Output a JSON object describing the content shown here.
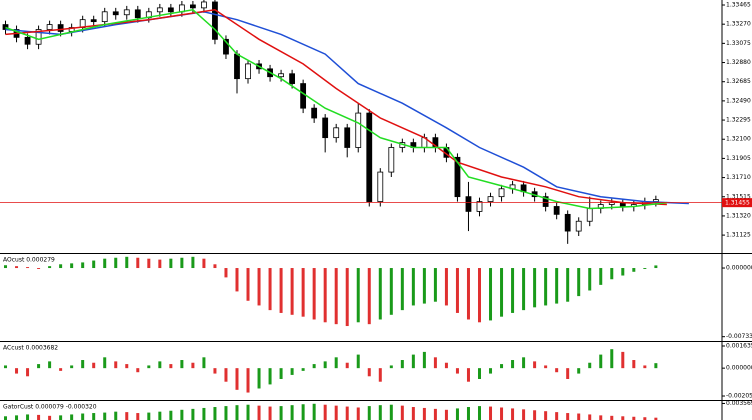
{
  "chart_data": [
    {
      "type": "candlestick",
      "open": [
        1.33266,
        1.33216,
        1.33136,
        1.33066,
        1.33216,
        1.33266,
        1.33196,
        1.33236,
        1.33316,
        1.33296,
        1.33396,
        1.33366,
        1.33416,
        1.33336,
        1.33396,
        1.33436,
        1.33396,
        1.33466,
        1.33436,
        1.33496,
        1.33116,
        1.32966,
        1.32716,
        1.32866,
        1.32816,
        1.32736,
        1.32766,
        1.32666,
        1.32416,
        1.32316,
        1.32116,
        1.32216,
        1.32016,
        1.32366,
        1.31466,
        1.31766,
        1.32016,
        1.32066,
        1.32016,
        1.32116,
        1.32016,
        1.31916,
        1.31516,
        1.31366,
        1.31466,
        1.31516,
        1.31596,
        1.31636,
        1.31566,
        1.31516,
        1.31416,
        1.31336,
        1.31166,
        1.31266,
        1.31396,
        1.31436,
        1.31456,
        1.31416,
        1.31436,
        1.31466
      ],
      "high": [
        1.33306,
        1.33256,
        1.33176,
        1.33256,
        1.33306,
        1.33306,
        1.33276,
        1.33356,
        1.33356,
        1.33436,
        1.33436,
        1.33456,
        1.33456,
        1.33436,
        1.33476,
        1.33476,
        1.33506,
        1.33506,
        1.33516,
        1.33516,
        1.33156,
        1.33006,
        1.32906,
        1.32906,
        1.32856,
        1.32806,
        1.32806,
        1.32706,
        1.32456,
        1.32356,
        1.32256,
        1.32256,
        1.32466,
        1.32406,
        1.31806,
        1.32056,
        1.32106,
        1.32106,
        1.32156,
        1.32156,
        1.32056,
        1.31956,
        1.31666,
        1.31506,
        1.31556,
        1.31636,
        1.31676,
        1.31676,
        1.31606,
        1.31556,
        1.31456,
        1.31376,
        1.31306,
        1.31516,
        1.31476,
        1.31496,
        1.31496,
        1.31476,
        1.31506,
        1.31526
      ],
      "low": [
        1.33166,
        1.33086,
        1.33016,
        1.33016,
        1.33166,
        1.33146,
        1.33146,
        1.33186,
        1.33246,
        1.33246,
        1.33316,
        1.33316,
        1.33286,
        1.33286,
        1.33346,
        1.33346,
        1.33346,
        1.33386,
        1.33386,
        1.33066,
        1.32916,
        1.32566,
        1.32666,
        1.32766,
        1.32686,
        1.32686,
        1.32616,
        1.32366,
        1.32266,
        1.31966,
        1.32066,
        1.31916,
        1.31966,
        1.31416,
        1.31416,
        1.31716,
        1.31966,
        1.31966,
        1.31966,
        1.31966,
        1.31866,
        1.31466,
        1.31166,
        1.31316,
        1.31416,
        1.31466,
        1.31546,
        1.31516,
        1.31466,
        1.31366,
        1.31286,
        1.31036,
        1.31116,
        1.31216,
        1.31346,
        1.31386,
        1.31366,
        1.31366,
        1.31386,
        1.31416
      ],
      "close": [
        1.33216,
        1.33136,
        1.33066,
        1.33216,
        1.33266,
        1.33196,
        1.33236,
        1.33316,
        1.33296,
        1.33396,
        1.33366,
        1.33416,
        1.33336,
        1.33396,
        1.33436,
        1.33396,
        1.33466,
        1.33436,
        1.33496,
        1.33116,
        1.32966,
        1.32716,
        1.32866,
        1.32816,
        1.32736,
        1.32766,
        1.32666,
        1.32416,
        1.32316,
        1.32116,
        1.32216,
        1.32016,
        1.32366,
        1.31466,
        1.31766,
        1.32016,
        1.32066,
        1.32016,
        1.32116,
        1.32016,
        1.31916,
        1.31516,
        1.31366,
        1.31466,
        1.31516,
        1.31596,
        1.31636,
        1.31566,
        1.31516,
        1.31416,
        1.31336,
        1.31166,
        1.31266,
        1.31396,
        1.31436,
        1.31456,
        1.31416,
        1.31436,
        1.31466,
        1.31486
      ],
      "up_color": "#ffffff",
      "down_color": "#000000",
      "series": [
        {
          "color": "#1f4fd6",
          "x": [
            0,
            5,
            10,
            18,
            21,
            25,
            29,
            32,
            36,
            40,
            43,
            47,
            50,
            54,
            58,
            62
          ],
          "values": [
            1.33216,
            1.33166,
            1.33266,
            1.33396,
            1.33316,
            1.33166,
            1.32966,
            1.32666,
            1.32466,
            1.32216,
            1.32016,
            1.31816,
            1.31616,
            1.31516,
            1.31466,
            1.31446
          ]
        },
        {
          "color": "#e01010",
          "x": [
            0,
            5,
            13,
            19,
            23,
            27,
            30,
            34,
            38,
            41,
            45,
            49,
            52,
            56,
            60
          ],
          "values": [
            1.33166,
            1.33216,
            1.33316,
            1.33416,
            1.33116,
            1.32866,
            1.32616,
            1.32316,
            1.32116,
            1.31866,
            1.31716,
            1.31616,
            1.31516,
            1.31456,
            1.31436
          ]
        },
        {
          "color": "#22dd22",
          "x": [
            0,
            3,
            9,
            17,
            19,
            21,
            25,
            29,
            32,
            34,
            37,
            40,
            42,
            47,
            50,
            53,
            57,
            60
          ],
          "values": [
            1.33236,
            1.33116,
            1.33266,
            1.33416,
            1.33216,
            1.32966,
            1.32716,
            1.32416,
            1.32266,
            1.32116,
            1.32016,
            1.32016,
            1.31716,
            1.31566,
            1.31466,
            1.31396,
            1.31416,
            1.31456
          ]
        }
      ],
      "current_price": 1.31455,
      "current_price_color": "#e01010",
      "xlim": [
        -0.5,
        65
      ],
      "ylim": [
        1.30943,
        1.33516
      ],
      "yticks": [
        1.33465,
        {
          "value": 1.3327,
          "label": "1.33270"
        },
        1.33075,
        {
          "value": 1.3288,
          "label": "1.32880"
        },
        1.32685,
        {
          "value": 1.3249,
          "label": "1.32490"
        },
        1.32295,
        {
          "value": 1.321,
          "label": "1.32100"
        },
        1.31905,
        {
          "value": 1.3171,
          "label": "1.31710"
        },
        1.31515,
        {
          "value": 1.3132,
          "label": "1.31320"
        },
        1.31125
      ]
    },
    {
      "type": "bar",
      "title": "AOcust 0.000279",
      "up_color": "#1a9a1a",
      "down_color": "#e03030",
      "values": [
        0.0003,
        0.0002,
        0.0001,
        -0.0001,
        0.0002,
        0.0004,
        0.0005,
        0.0006,
        0.0008,
        0.001,
        0.0011,
        0.0012,
        0.0011,
        0.001,
        0.0009,
        0.001,
        0.0011,
        0.0012,
        0.001,
        0.0004,
        -0.001,
        -0.0025,
        -0.0035,
        -0.004,
        -0.0045,
        -0.0048,
        -0.005,
        -0.0052,
        -0.0055,
        -0.0058,
        -0.006,
        -0.0062,
        -0.0058,
        -0.006,
        -0.0055,
        -0.005,
        -0.0045,
        -0.004,
        -0.0038,
        -0.0036,
        -0.004,
        -0.0048,
        -0.0055,
        -0.0058,
        -0.0056,
        -0.0052,
        -0.0048,
        -0.0045,
        -0.0042,
        -0.004,
        -0.0038,
        -0.0036,
        -0.003,
        -0.0024,
        -0.0018,
        -0.0012,
        -0.0008,
        -0.0004,
        -0.0001,
        0.000279
      ],
      "xlim": [
        -0.5,
        65
      ],
      "ylim": [
        -0.0078,
        0.0015
      ],
      "yticks": [
        {
          "value": 0,
          "label": "0.000000"
        },
        {
          "value": -0.007338,
          "label": "-0.007338"
        }
      ]
    },
    {
      "type": "bar",
      "title": "ACcust 0.0003682",
      "up_color": "#1a9a1a",
      "down_color": "#e03030",
      "values": [
        0.0002,
        -0.0004,
        -0.0006,
        0.0003,
        0.0005,
        -0.0002,
        0.0002,
        0.0006,
        0.0004,
        0.0008,
        0.0005,
        0.0003,
        -0.0003,
        0.0002,
        0.0005,
        0.0003,
        0.0006,
        0.0004,
        0.0008,
        -0.0004,
        -0.001,
        -0.0016,
        -0.0018,
        -0.0015,
        -0.0012,
        -0.0008,
        -0.0005,
        -0.0002,
        0.0003,
        0.0005,
        0.0008,
        0.0004,
        0.001,
        -0.0006,
        -0.001,
        0.0002,
        0.0006,
        0.001,
        0.0012,
        0.0008,
        0.0004,
        -0.0004,
        -0.001,
        -0.0008,
        -0.0004,
        0.0003,
        0.0006,
        0.0008,
        0.0005,
        0.0002,
        -0.0003,
        -0.0008,
        -0.0004,
        0.0004,
        0.001,
        0.0014,
        0.0012,
        0.0006,
        0.0002,
        0.0003682
      ],
      "xlim": [
        -0.5,
        65
      ],
      "ylim": [
        -0.00235,
        0.00193
      ],
      "yticks": [
        {
          "value": 0.001635,
          "label": "0.0016350"
        },
        {
          "value": 0,
          "label": "0.0000000"
        },
        {
          "value": -0.002056,
          "label": "-0.0020560"
        }
      ]
    },
    {
      "type": "bar",
      "title": "GatorCust 0.000079 -0.000320",
      "up_color": "#1a9a1a",
      "down_color": "#e03030",
      "values": [
        0.0008,
        0.001,
        0.0012,
        0.0011,
        0.0009,
        0.001,
        0.0012,
        0.0014,
        0.0015,
        0.0016,
        0.0018,
        0.0017,
        0.0015,
        0.0016,
        0.0018,
        0.002,
        0.0022,
        0.0024,
        0.0026,
        0.0028,
        0.003,
        0.0032,
        0.0033,
        0.0031,
        0.0029,
        0.003,
        0.0032,
        0.0034,
        0.0035,
        0.0033,
        0.0031,
        0.0029,
        0.0027,
        0.003,
        0.0032,
        0.0033,
        0.0031,
        0.0028,
        0.0026,
        0.0024,
        0.0022,
        0.0025,
        0.0028,
        0.003,
        0.0029,
        0.0027,
        0.0025,
        0.0023,
        0.0021,
        0.0019,
        0.0017,
        0.0015,
        0.0014,
        0.0012,
        0.001,
        0.0009,
        0.0008,
        0.0007,
        0.0006,
        0.0005
      ],
      "xlim": [
        -0.5,
        65
      ],
      "ylim": [
        0,
        0.0041
      ],
      "yticks": [
        0.003569
      ]
    }
  ]
}
